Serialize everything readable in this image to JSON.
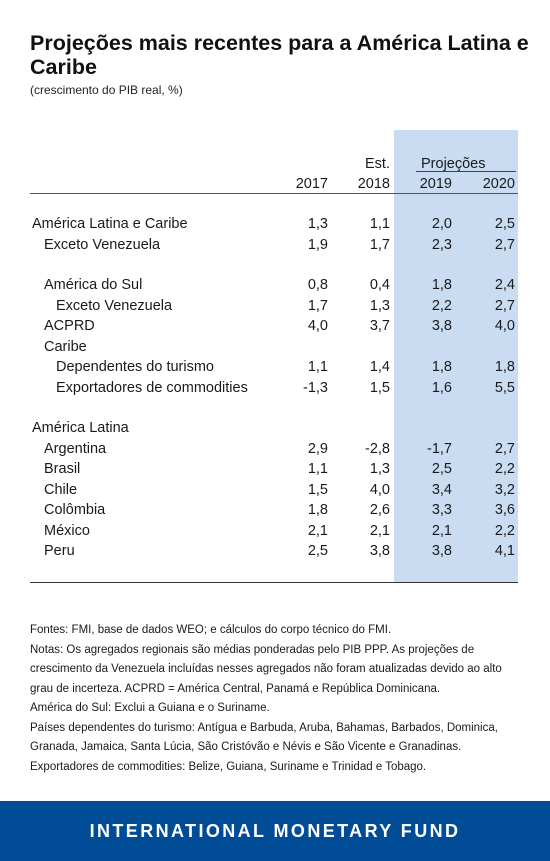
{
  "title": "Projeções mais recentes para a América Latina e Caribe",
  "subtitle": "(crescimento do PIB real, %)",
  "chart_data": {
    "type": "table",
    "header": {
      "est_label": "Est.",
      "proj_label": "Projeções",
      "years": [
        "2017",
        "2018",
        "2019",
        "2020"
      ]
    },
    "rows": [
      {
        "label": "América Latina e Caribe",
        "indent": 0,
        "values": [
          "1,3",
          "1,1",
          "2,0",
          "2,5"
        ]
      },
      {
        "label": "Exceto Venezuela",
        "indent": 1,
        "values": [
          "1,9",
          "1,7",
          "2,3",
          "2,7"
        ]
      },
      {
        "label": "América do Sul",
        "indent": 1,
        "values": [
          "0,8",
          "0,4",
          "1,8",
          "2,4"
        ],
        "gap": true
      },
      {
        "label": "Exceto Venezuela",
        "indent": 2,
        "values": [
          "1,7",
          "1,3",
          "2,2",
          "2,7"
        ]
      },
      {
        "label": "ACPRD",
        "indent": 1,
        "values": [
          "4,0",
          "3,7",
          "3,8",
          "4,0"
        ]
      },
      {
        "label": "Caribe",
        "indent": 1,
        "values": []
      },
      {
        "label": "Dependentes do turismo",
        "indent": 2,
        "values": [
          "1,1",
          "1,4",
          "1,8",
          "1,8"
        ]
      },
      {
        "label": "Exportadores de commodities",
        "indent": 2,
        "values": [
          "-1,3",
          "1,5",
          "1,6",
          "5,5"
        ]
      },
      {
        "label": "América Latina",
        "indent": 0,
        "values": [],
        "gap": true
      },
      {
        "label": "Argentina",
        "indent": 1,
        "values": [
          "2,9",
          "-2,8",
          "-1,7",
          "2,7"
        ]
      },
      {
        "label": "Brasil",
        "indent": 1,
        "values": [
          "1,1",
          "1,3",
          "2,5",
          "2,2"
        ]
      },
      {
        "label": "Chile",
        "indent": 1,
        "values": [
          "1,5",
          "4,0",
          "3,4",
          "3,2"
        ]
      },
      {
        "label": "Colômbia",
        "indent": 1,
        "values": [
          "1,8",
          "2,6",
          "3,3",
          "3,6"
        ]
      },
      {
        "label": "México",
        "indent": 1,
        "values": [
          "2,1",
          "2,1",
          "2,1",
          "2,2"
        ]
      },
      {
        "label": "Peru",
        "indent": 1,
        "values": [
          "2,5",
          "3,8",
          "3,8",
          "4,1"
        ]
      }
    ]
  },
  "notes": [
    "Fontes: FMI, base de dados WEO; e cálculos do corpo técnico do FMI.",
    "Notas: Os agregados regionais são médias ponderadas pelo PIB PPP. As projeções de crescimento da Venezuela incluídas nesses agregados não foram atualizadas devido ao alto grau de incerteza. ACPRD = América Central, Panamá e República Dominicana.",
    "América do Sul: Exclui a Guiana e o Suriname.",
    "Países dependentes do turismo: Antígua e Barbuda, Aruba, Bahamas, Barbados, Dominica, Granada, Jamaica, Santa Lúcia, São Cristóvão e Névis e São Vicente e Granadinas. Exportadores de commodities: Belize, Guiana, Suriname e Trinidad e Tobago."
  ],
  "footer": "INTERNATIONAL MONETARY FUND",
  "colors": {
    "projection_shade": "#c9dcf2",
    "footer_bg": "#004c97"
  }
}
